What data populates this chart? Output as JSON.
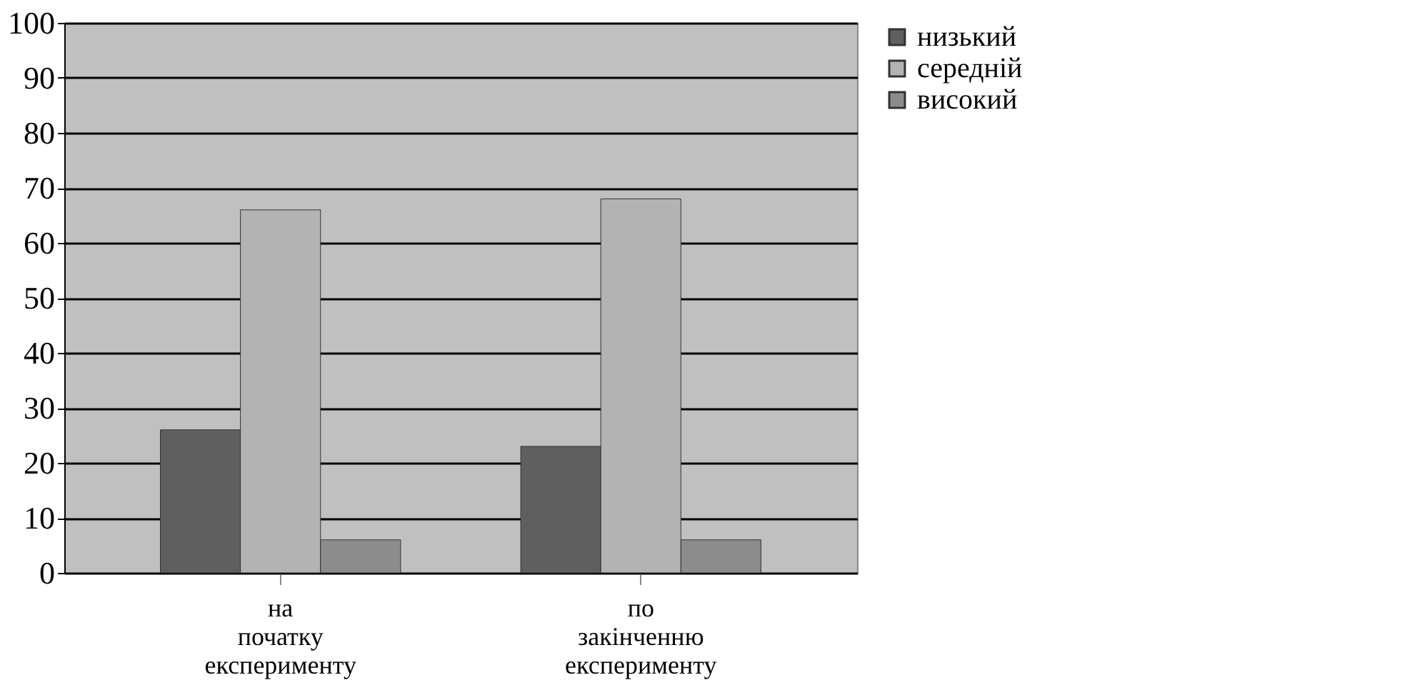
{
  "chart_data": {
    "type": "bar",
    "categories": [
      "на початку експерименту",
      "по закінченню експерименту"
    ],
    "series": [
      {
        "name": "низький",
        "color": "#5f5f5f",
        "values": [
          26,
          23
        ]
      },
      {
        "name": "середній",
        "color": "#b3b3b3",
        "values": [
          66,
          68
        ]
      },
      {
        "name": "високий",
        "color": "#8c8c8c",
        "values": [
          6,
          6
        ]
      }
    ],
    "ylim": [
      0,
      100
    ],
    "yticks": [
      0,
      10,
      20,
      30,
      40,
      50,
      60,
      70,
      80,
      90,
      100
    ],
    "grid": "y",
    "legend": "right"
  }
}
